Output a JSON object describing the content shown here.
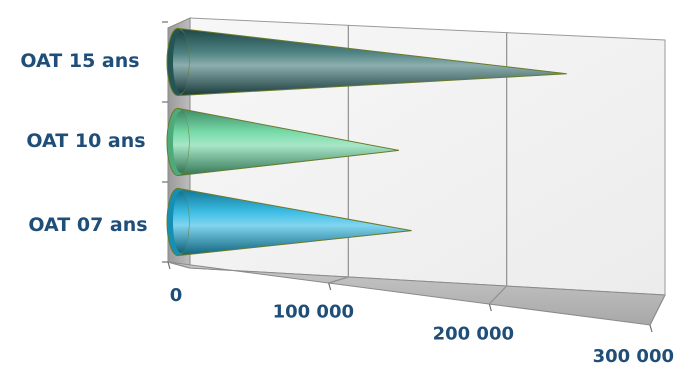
{
  "chart_data": {
    "type": "bar",
    "style": "3d-cone-horizontal",
    "categories": [
      "OAT 15 ans",
      "OAT 10 ans",
      "OAT 07 ans"
    ],
    "values": [
      243000,
      137000,
      145000
    ],
    "colors": [
      "#2e6b6b",
      "#5fd49a",
      "#1ab3e0"
    ],
    "xticks": [
      "0",
      "100 000",
      "200 000",
      "300 000"
    ],
    "xlim": [
      0,
      300000
    ],
    "grid": true,
    "title": "",
    "xlabel": "",
    "ylabel": ""
  }
}
